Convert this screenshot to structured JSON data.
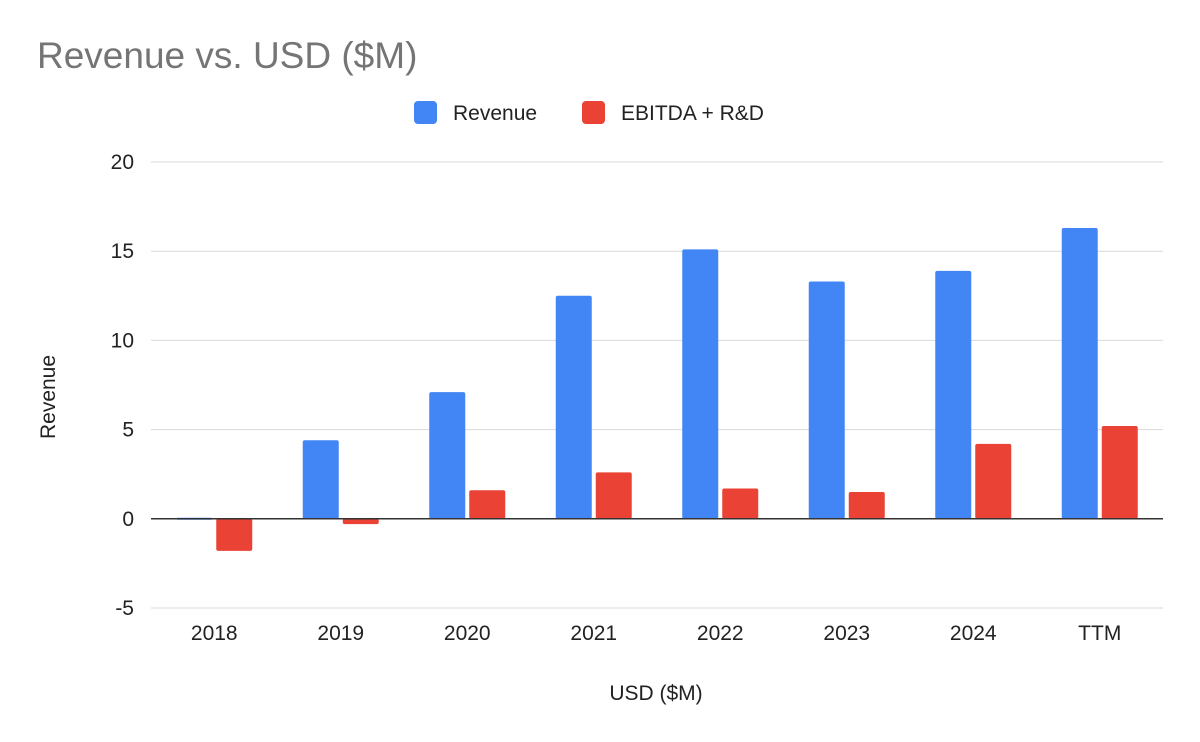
{
  "chart_data": {
    "type": "bar",
    "title": "Revenue vs. USD ($M)",
    "xlabel": "USD ($M)",
    "ylabel": "Revenue",
    "ylim": [
      -5,
      20
    ],
    "yticks": [
      20,
      15,
      10,
      5,
      0,
      -5
    ],
    "grid": true,
    "legend_position": "top-center",
    "categories": [
      "2018",
      "2019",
      "2020",
      "2021",
      "2022",
      "2023",
      "2024",
      "TTM"
    ],
    "series": [
      {
        "name": "Revenue",
        "color": "#4285F4",
        "values": [
          0.05,
          4.4,
          7.1,
          12.5,
          15.1,
          13.3,
          13.9,
          16.3
        ]
      },
      {
        "name": "EBITDA + R&D",
        "color": "#EA4335",
        "values": [
          -1.8,
          -0.3,
          1.6,
          2.6,
          1.7,
          1.5,
          4.2,
          5.2
        ]
      }
    ]
  }
}
